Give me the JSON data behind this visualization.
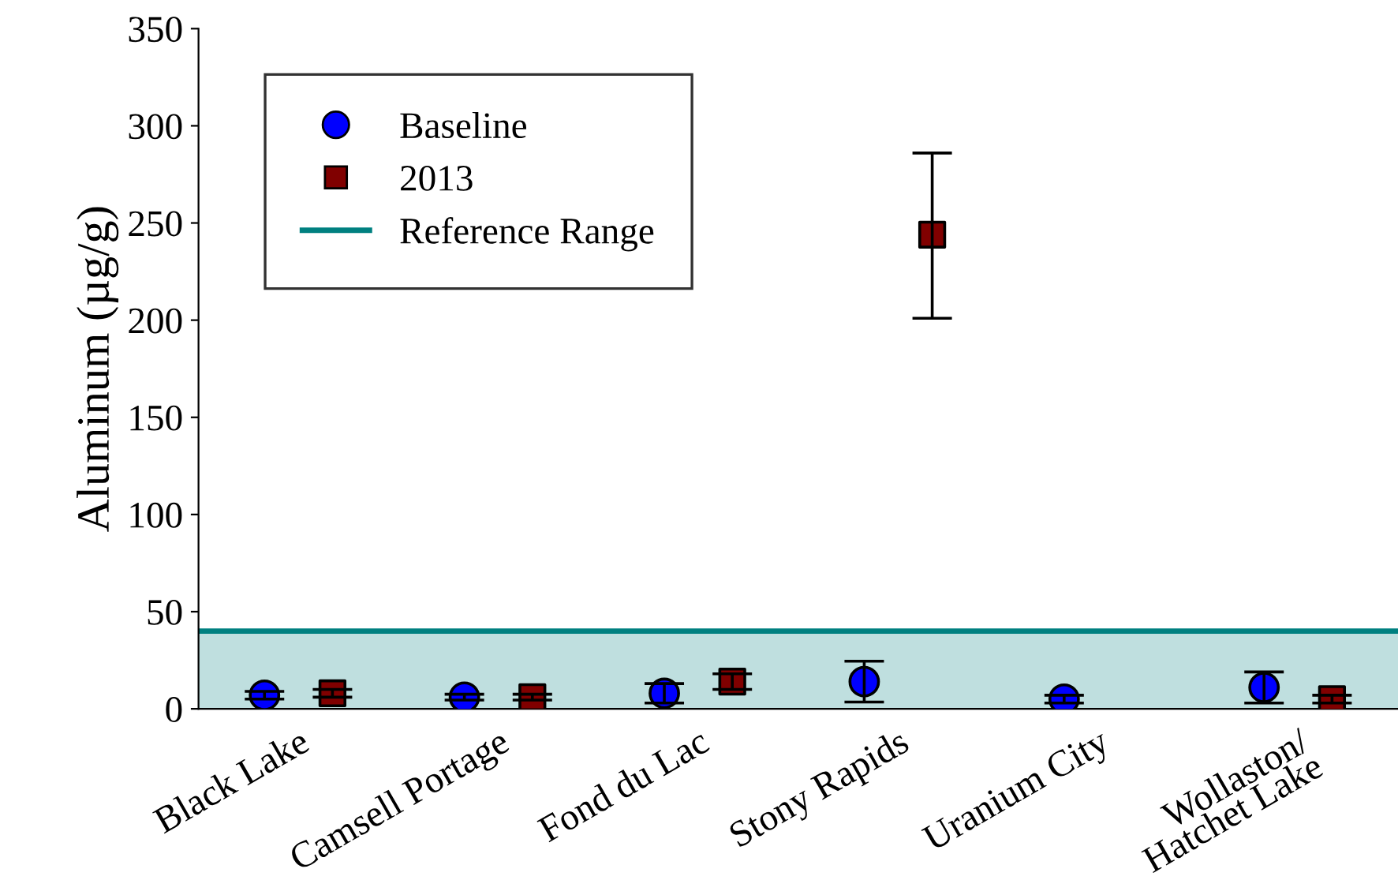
{
  "chart_data": {
    "type": "scatter",
    "ylabel": "Aluminum (µg/g)",
    "categories": [
      "Black Lake",
      "Camsell Portage",
      "Fond du Lac",
      "Stony Rapids",
      "Uranium City",
      "Wollaston/\nHatchet Lake"
    ],
    "series": [
      {
        "name": "Baseline",
        "color": "#0000ff",
        "marker": "circle",
        "values": [
          7,
          6,
          8,
          14,
          5,
          11
        ],
        "errors": [
          2,
          1.5,
          5,
          10.5,
          2,
          8
        ]
      },
      {
        "name": "2013",
        "color": "#800000",
        "marker": "square",
        "values": [
          8,
          6,
          14,
          244,
          null,
          5
        ],
        "errors": [
          2,
          1.5,
          4,
          [
            201,
            286
          ],
          null,
          2
        ]
      }
    ],
    "ylim": [
      0,
      350
    ],
    "yticks": [
      0,
      50,
      100,
      150,
      200,
      250,
      300,
      350
    ],
    "bands": [
      {
        "axis": "y",
        "from": 0,
        "to": 40,
        "label": "Reference Range",
        "color": "#008080"
      }
    ],
    "ref_lines": [
      {
        "axis": "y",
        "value": 40,
        "color": "#008080"
      }
    ],
    "legend": "top left",
    "grid": false
  }
}
